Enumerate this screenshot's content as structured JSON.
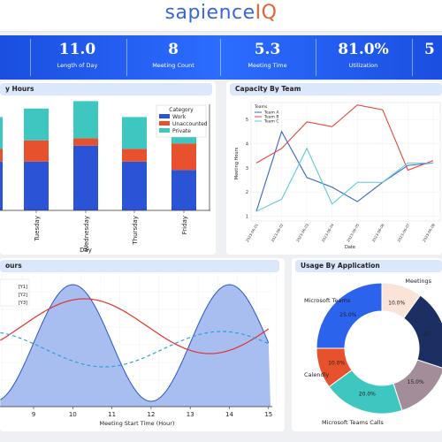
{
  "header": {
    "logo_part1": "sapience",
    "logo_part2": "IQ"
  },
  "kpis": [
    {
      "value": "11.0",
      "label": "Length of Day"
    },
    {
      "value": "8",
      "label": "Meeting Count"
    },
    {
      "value": "5.3",
      "label": "Meeting Time"
    },
    {
      "value": "81.0%",
      "label": "Utilization"
    },
    {
      "value": "5",
      "label": ""
    }
  ],
  "panels": {
    "day_hours_title": "y Hours",
    "capacity_title": "Capacity By Team",
    "hours_title": "ours",
    "usage_title": "Usage By Application"
  },
  "colors": {
    "work": "#2b53d6",
    "unaccounted": "#e8512d",
    "private": "#3ec6c0",
    "teamA": "#3a66c8",
    "teamB": "#e0483a",
    "teamC": "#5cc8d8"
  },
  "chart_data": [
    {
      "type": "bar",
      "title": "",
      "categories": [
        "Tuesday",
        "Wednesday",
        "Thursday",
        "Friday"
      ],
      "xlabel": "Day",
      "legend": {
        "title": "Category",
        "placement": "top-right",
        "entries": [
          "Work",
          "Unaccounted",
          "Private"
        ]
      },
      "series": [
        {
          "name": "Work",
          "values": [
            4.6,
            6.1,
            4.6,
            3.8
          ]
        },
        {
          "name": "Unaccounted",
          "values": [
            2.0,
            0.7,
            1.2,
            2.5
          ]
        },
        {
          "name": "Private",
          "values": [
            3.0,
            3.5,
            3.0,
            3.0
          ]
        }
      ],
      "left_edge": {
        "work": 4.6,
        "unaccounted": 1.2,
        "private": 3.0
      }
    },
    {
      "type": "line",
      "title": "Capacity By Team",
      "xlabel": "Date",
      "ylabel": "Meeting Hours",
      "x": [
        "2023-06-01",
        "2023-06-02",
        "2023-06-03",
        "2023-06-04",
        "2023-06-05",
        "2023-06-06",
        "2023-06-07",
        "2023-06-08"
      ],
      "yticks": [
        "1",
        "2",
        "3",
        "4",
        "5"
      ],
      "ylim": [
        0.8,
        5.7
      ],
      "legend": {
        "title": "Teams",
        "placement": "top-left",
        "entries": [
          "Team A",
          "Team B",
          "Team C"
        ]
      },
      "series": [
        {
          "name": "Team A",
          "values": [
            1.2,
            4.5,
            2.6,
            2.2,
            1.6,
            2.4,
            3.1,
            3.2
          ]
        },
        {
          "name": "Team B",
          "values": [
            3.2,
            3.8,
            4.9,
            4.7,
            5.6,
            5.4,
            2.9,
            3.3
          ]
        },
        {
          "name": "Team C",
          "values": [
            1.2,
            1.7,
            3.8,
            1.5,
            2.4,
            2.4,
            3.2,
            3.2
          ]
        }
      ]
    },
    {
      "type": "area",
      "title": "",
      "xlabel": "Meeting Start Time (Hour)",
      "xticks": [
        "9",
        "10",
        "11",
        "12",
        "13",
        "14",
        "15"
      ],
      "legend": {
        "placement": "top-left",
        "entries": [
          "[Y1]",
          "[Y2]",
          "[Y3]"
        ]
      }
    },
    {
      "type": "pie",
      "title": "Usage By Application",
      "labels": [
        "Meetings",
        "Microsoft Teams",
        "Calendly",
        "Microsoft Teams Calls"
      ],
      "slices": [
        {
          "label": "Meetings",
          "value": 10.0,
          "pct": "10.0%",
          "color": "#fae3d8"
        },
        {
          "label": "",
          "value": 20.0,
          "pct": "20.",
          "color": "#1c2f63"
        },
        {
          "label": "",
          "value": 15.0,
          "pct": "15.0%",
          "color": "#a38d99"
        },
        {
          "label": "Microsoft Teams Calls",
          "value": 20.0,
          "pct": "20.0%",
          "color": "#3ec6c0"
        },
        {
          "label": "Calendly",
          "value": 10.0,
          "pct": "10.0%",
          "color": "#e8512d"
        },
        {
          "label": "Microsoft Teams",
          "value": 25.0,
          "pct": "25.0%",
          "color": "#2b63ec"
        }
      ]
    }
  ]
}
